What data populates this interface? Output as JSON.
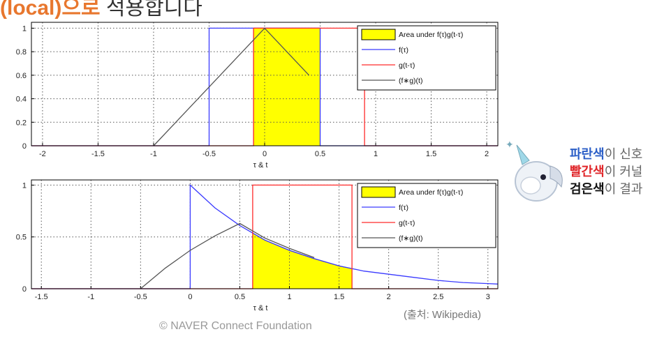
{
  "heading": {
    "highlight": "(local)으로",
    "rest": " 적용합니다"
  },
  "chart_data": [
    {
      "type": "line",
      "xlabel": "τ & t",
      "xlim": [
        -2.1,
        2.1
      ],
      "ylim": [
        0,
        1.05
      ],
      "xticks": [
        -2,
        -1.5,
        -1,
        -0.5,
        0,
        0.5,
        1,
        1.5,
        2
      ],
      "xticklabels": [
        "-2",
        "-1.5",
        "-1",
        "-0.5",
        "0",
        "0.5",
        "1",
        "1.5",
        "2"
      ],
      "yticks": [
        0,
        0.2,
        0.4,
        0.6,
        0.8,
        1
      ],
      "yticklabels": [
        "0",
        "0.2",
        "0.4",
        "0.6",
        "0.8",
        "1"
      ],
      "grid": true,
      "legend_position": "top-right",
      "legend": [
        "Area under f(τ)g(t-τ)",
        "f(τ)",
        "g(t-τ)",
        "(f∗g)(t)"
      ],
      "series": [
        {
          "name": "f(τ)",
          "color": "#3a3aff",
          "x": [
            -2.1,
            -0.5,
            -0.5,
            0.5,
            0.5,
            2.1
          ],
          "y": [
            0,
            0,
            1,
            1,
            0,
            0
          ]
        },
        {
          "name": "g(t-τ)",
          "color": "#ff2a2a",
          "x": [
            -2.1,
            -0.1,
            -0.1,
            0.9,
            0.9,
            2.1
          ],
          "y": [
            0,
            0,
            1,
            1,
            0,
            0
          ]
        },
        {
          "name": "(f∗g)(t)",
          "color": "#555555",
          "x": [
            -1,
            0,
            0.4
          ],
          "y": [
            0,
            1,
            0.6
          ]
        }
      ],
      "area": {
        "name": "Area under f(τ)g(t-τ)",
        "color": "#ffff00",
        "x": [
          -0.1,
          0.5
        ],
        "y": 1
      }
    },
    {
      "type": "line",
      "xlabel": "τ & t",
      "xlim": [
        -1.6,
        3.1
      ],
      "ylim": [
        0,
        1.05
      ],
      "xticks": [
        -1.5,
        -1,
        -0.5,
        0,
        0.5,
        1,
        1.5,
        2,
        2.5,
        3
      ],
      "xticklabels": [
        "-1.5",
        "-1",
        "-0.5",
        "0",
        "0.5",
        "1",
        "1.5",
        "2",
        "2.5",
        "3"
      ],
      "yticks": [
        0,
        0.5,
        1
      ],
      "yticklabels": [
        "0",
        "0.5",
        "1"
      ],
      "grid": true,
      "legend_position": "top-right",
      "legend": [
        "Area under f(τ)g(t-τ)",
        "f(τ)",
        "g(t-τ)",
        "(f∗g)(t)"
      ],
      "series": [
        {
          "name": "f(τ)",
          "color": "#3a3aff",
          "x": [
            -1.6,
            0,
            0,
            0.25,
            0.5,
            0.75,
            1,
            1.25,
            1.5,
            1.75,
            2,
            2.25,
            2.5,
            2.75,
            3,
            3.1
          ],
          "y": [
            0,
            0,
            1,
            0.78,
            0.61,
            0.47,
            0.37,
            0.29,
            0.22,
            0.17,
            0.14,
            0.11,
            0.08,
            0.06,
            0.05,
            0.045
          ]
        },
        {
          "name": "g(t-τ)",
          "color": "#ff2a2a",
          "x": [
            -1.6,
            0.63,
            0.63,
            1.63,
            1.63,
            3.1
          ],
          "y": [
            0,
            0,
            1,
            1,
            0,
            0
          ]
        },
        {
          "name": "(f∗g)(t)",
          "color": "#555555",
          "x": [
            -0.5,
            -0.25,
            0,
            0.25,
            0.5,
            0.75,
            1,
            1.25
          ],
          "y": [
            0,
            0.2,
            0.37,
            0.51,
            0.63,
            0.49,
            0.39,
            0.3
          ]
        }
      ],
      "area": {
        "name": "Area under f(τ)g(t-τ)",
        "color": "#ffff00",
        "x": [
          0.63,
          1.63
        ],
        "curve": "f"
      }
    }
  ],
  "side_notes": [
    {
      "word": "파란색",
      "word_color": "#2c5fc7",
      "rest": "이 신호"
    },
    {
      "word": "빨간색",
      "word_color": "#e0262a",
      "rest": "이 커널"
    },
    {
      "word": "검은색",
      "word_color": "#111111",
      "rest": "이 결과"
    }
  ],
  "mascot_icon": "unicorn-mascot-icon",
  "source": "(출처: Wikipedia)",
  "copyright": "©  NAVER Connect Foundation"
}
